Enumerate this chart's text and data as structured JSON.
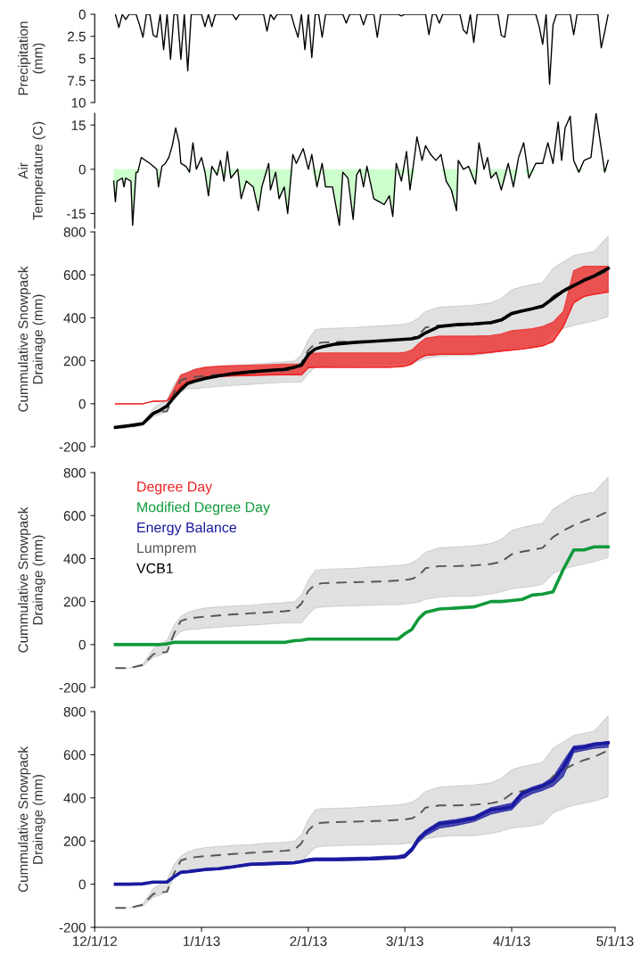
{
  "chart_data": [
    {
      "type": "line",
      "ylabel": "Precipitation\n(mm)",
      "xlim": [
        "2012-12-01",
        "2013-05-01"
      ],
      "ylim": [
        10,
        0
      ],
      "yticks": [
        0,
        2.5,
        5,
        7.5,
        10
      ],
      "tick_labels": "y",
      "x": [
        "2012-12-07",
        "2012-12-08",
        "2012-12-09",
        "2012-12-10",
        "2012-12-11",
        "2012-12-13",
        "2012-12-14",
        "2012-12-15",
        "2012-12-16",
        "2012-12-17",
        "2012-12-18",
        "2012-12-19",
        "2012-12-20",
        "2012-12-21",
        "2012-12-22",
        "2012-12-23",
        "2012-12-24",
        "2012-12-25",
        "2012-12-26",
        "2012-12-27",
        "2012-12-28",
        "2012-12-29",
        "2013-01-01",
        "2013-01-02",
        "2013-01-03",
        "2013-01-04",
        "2013-01-05",
        "2013-01-10",
        "2013-01-11",
        "2013-01-12",
        "2013-01-19",
        "2013-01-20",
        "2013-01-21",
        "2013-01-22",
        "2013-01-23",
        "2013-01-27",
        "2013-01-28",
        "2013-01-29",
        "2013-01-30",
        "2013-01-31",
        "2013-02-01",
        "2013-02-02",
        "2013-02-03",
        "2013-02-04",
        "2013-02-05",
        "2013-02-06",
        "2013-02-11",
        "2013-02-12",
        "2013-02-13",
        "2013-02-16",
        "2013-02-17",
        "2013-02-18",
        "2013-02-20",
        "2013-02-21",
        "2013-02-22",
        "2013-02-27",
        "2013-02-28",
        "2013-03-01",
        "2013-03-07",
        "2013-03-08",
        "2013-03-09",
        "2013-03-10",
        "2013-03-11",
        "2013-03-12",
        "2013-03-17",
        "2013-03-18",
        "2013-03-19",
        "2013-03-20",
        "2013-03-21",
        "2013-03-22",
        "2013-03-28",
        "2013-03-29",
        "2013-03-30",
        "2013-03-31",
        "2013-04-08",
        "2013-04-09",
        "2013-04-10",
        "2013-04-11",
        "2013-04-12",
        "2013-04-13",
        "2013-04-14",
        "2013-04-18",
        "2013-04-19",
        "2013-04-20",
        "2013-04-26",
        "2013-04-27",
        "2013-04-28",
        "2013-04-29"
      ],
      "series": [
        {
          "color": "#000000",
          "values": [
            0,
            1.5,
            0,
            0.6,
            0,
            0,
            1.2,
            2.6,
            0,
            0,
            2.4,
            2.6,
            0,
            4.0,
            0,
            5.1,
            0,
            0,
            5.1,
            0,
            6.4,
            0,
            0,
            1.4,
            0,
            1.4,
            0,
            0,
            0.6,
            0,
            0,
            1.9,
            0,
            0.6,
            0,
            0,
            1.4,
            2.6,
            0,
            4.0,
            0,
            4.9,
            0,
            0,
            2.6,
            0,
            0,
            1.0,
            0,
            0,
            1.2,
            0,
            0,
            2.6,
            0,
            0,
            0.2,
            0,
            0,
            2.3,
            0,
            0,
            1.0,
            0,
            0,
            1.8,
            2.2,
            0,
            3.2,
            0,
            0,
            2.4,
            2.6,
            0,
            0,
            1.4,
            3.4,
            0,
            7.9,
            1.2,
            0,
            0,
            2.3,
            0,
            0,
            3.8,
            2.0,
            0
          ]
        }
      ]
    },
    {
      "type": "line",
      "ylabel": "Air\nTemperature (C)",
      "xlim": [
        "2012-12-01",
        "2013-05-01"
      ],
      "ylim": [
        -20,
        19
      ],
      "yticks": [
        -15,
        0,
        15
      ],
      "tick_labels": "y",
      "x": [
        "2012-12-06T12:00",
        "2012-12-07T00:00",
        "2012-12-07T12:00",
        "2012-12-09T00:00",
        "2012-12-09T12:00",
        "2012-12-10T00:00",
        "2012-12-11T12:00",
        "2012-12-12T00:00",
        "2012-12-13T00:00",
        "2012-12-13T12:00",
        "2012-12-14T12:00",
        "2012-12-17T00:00",
        "2012-12-19T00:00",
        "2012-12-19T12:00",
        "2012-12-20T12:00",
        "2012-12-21T12:00",
        "2012-12-22T12:00",
        "2012-12-23T12:00",
        "2012-12-24T12:00",
        "2012-12-25T12:00",
        "2012-12-26T00:00",
        "2012-12-27T12:00",
        "2012-12-28T12:00",
        "2012-12-29T12:00",
        "2012-12-30T12:00",
        "2013-01-01T00:00",
        "2013-01-02T00:00",
        "2013-01-03T00:00",
        "2013-01-04T00:00",
        "2013-01-05T12:00",
        "2013-01-06T12:00",
        "2013-01-07T12:00",
        "2013-01-08T12:00",
        "2013-01-09T12:00",
        "2013-01-11T12:00",
        "2013-01-12T12:00",
        "2013-01-14T00:00",
        "2013-01-16T00:00",
        "2013-01-17T12:00",
        "2013-01-18T12:00",
        "2013-01-20T12:00",
        "2013-01-21T00:00",
        "2013-01-22T12:00",
        "2013-01-23T12:00",
        "2013-01-25T00:00",
        "2013-01-26T00:00",
        "2013-01-27T12:00",
        "2013-01-28T12:00",
        "2013-01-30T12:00",
        "2013-02-01T00:00",
        "2013-02-02T00:00",
        "2013-02-03T12:00",
        "2013-02-05T00:00",
        "2013-02-06T00:00",
        "2013-02-08T00:00",
        "2013-02-10T00:00",
        "2013-02-11T00:00",
        "2013-02-12T12:00",
        "2013-02-14T00:00",
        "2013-02-15T00:00",
        "2013-02-16T00:00",
        "2013-02-17T00:00",
        "2013-02-18T00:00",
        "2013-02-20T00:00",
        "2013-02-21T12:00",
        "2013-02-23T00:00",
        "2013-02-24T12:00",
        "2013-02-25T12:00",
        "2013-02-26T12:00",
        "2013-02-28T00:00",
        "2013-03-01T12:00",
        "2013-03-02T12:00",
        "2013-03-04T00:00",
        "2013-03-04T12:00",
        "2013-03-06T00:00",
        "2013-03-07T00:00",
        "2013-03-08T12:00",
        "2013-03-10T00:00",
        "2013-03-11T12:00",
        "2013-03-13T00:00",
        "2013-03-14T12:00",
        "2013-03-16T00:00",
        "2013-03-16T12:00",
        "2013-03-18T00:00",
        "2013-03-19T12:00",
        "2013-03-21T12:00",
        "2013-03-22T12:00",
        "2013-03-24T00:00",
        "2013-03-25T00:00",
        "2013-03-26T00:00",
        "2013-03-27T12:00",
        "2013-03-29T00:00",
        "2013-03-31T00:00",
        "2013-04-01T12:00",
        "2013-04-03T00:00",
        "2013-04-04T12:00",
        "2013-04-06T00:00",
        "2013-04-08T00:00",
        "2013-04-10T00:00",
        "2013-04-11T12:00",
        "2013-04-13T00:00",
        "2013-04-14T12:00",
        "2013-04-15T12:00",
        "2013-04-16T12:00",
        "2013-04-18T00:00",
        "2013-04-19T00:00",
        "2013-04-20T12:00",
        "2013-04-22T00:00",
        "2013-04-24T00:00",
        "2013-04-25T12:00",
        "2013-04-26T12:00",
        "2013-04-28T00:00",
        "2013-04-29T00:00"
      ],
      "series": [
        {
          "type": "area",
          "color": "#ccffcc",
          "values": [
            -4,
            -11,
            -4,
            -3,
            -6,
            -3,
            -4,
            -19,
            -1,
            -1,
            0,
            0,
            0,
            -6,
            0,
            0,
            0,
            0,
            0,
            0,
            0,
            0,
            -1,
            0,
            0,
            0,
            -1,
            -9,
            0,
            -2,
            0,
            -4,
            0,
            -3,
            0,
            -10,
            -4,
            -6,
            -14,
            -6,
            0,
            -7,
            -1,
            -10,
            -6,
            -15,
            0,
            0,
            0,
            0,
            0,
            -6,
            0,
            -6,
            -6,
            -19,
            -1,
            -3,
            -17,
            -2,
            0,
            -6,
            0,
            -10,
            -11,
            -12,
            -9,
            -16,
            0,
            -4,
            0,
            -7,
            0,
            0,
            0,
            0,
            0,
            0,
            0,
            -4,
            -7,
            -14,
            0,
            0,
            0,
            -5,
            0,
            0,
            0,
            -3,
            -1,
            -7,
            0,
            -6,
            0,
            0,
            -3,
            0,
            0,
            0,
            0,
            0,
            0,
            0,
            0,
            0,
            -1,
            0,
            0,
            0,
            0,
            -1,
            0
          ]
        },
        {
          "type": "line",
          "color": "#000000",
          "values": [
            -4,
            -11,
            -4,
            -3,
            -6,
            -3,
            -4,
            -19,
            -1,
            -1,
            4,
            2,
            0,
            -6,
            1,
            2,
            4,
            8,
            14,
            9,
            2,
            1,
            -1,
            9,
            0,
            4,
            -1,
            -9,
            1,
            -2,
            3,
            -4,
            6,
            -3,
            0,
            -10,
            -4,
            -6,
            -14,
            -6,
            2,
            -7,
            -1,
            -10,
            -6,
            -15,
            5,
            2,
            7,
            0,
            5,
            -6,
            2,
            -6,
            -6,
            -19,
            -1,
            -3,
            -17,
            -2,
            0,
            -6,
            1,
            -10,
            -11,
            -12,
            -9,
            -16,
            2,
            -4,
            6,
            -7,
            6,
            11,
            3,
            8,
            5,
            3,
            5,
            -4,
            -7,
            -14,
            3,
            0,
            1,
            -5,
            9,
            0,
            4,
            -3,
            -1,
            -7,
            2,
            -6,
            4,
            9,
            -3,
            2,
            2,
            9,
            2,
            16,
            3,
            14,
            18,
            3,
            -1,
            3,
            4,
            19,
            11,
            -1,
            3
          ]
        }
      ]
    },
    {
      "type": "line",
      "ylabel": "Cummulative Snowpack\nDrainage (mm)",
      "xlim": [
        "2012-12-01",
        "2013-05-01"
      ],
      "ylim": [
        -200,
        800
      ],
      "yticks": [
        -200,
        0,
        200,
        400,
        600,
        800
      ],
      "tick_labels": "y",
      "x": [
        "2012-12-07",
        "2012-12-11",
        "2012-12-15",
        "2012-12-18",
        "2012-12-20",
        "2012-12-22",
        "2012-12-24",
        "2012-12-26",
        "2012-12-28",
        "2012-12-30",
        "2013-01-02",
        "2013-01-06",
        "2013-01-10",
        "2013-01-15",
        "2013-01-20",
        "2013-01-25",
        "2013-01-28",
        "2013-01-30",
        "2013-02-01",
        "2013-02-03",
        "2013-02-05",
        "2013-02-09",
        "2013-02-14",
        "2013-02-19",
        "2013-02-24",
        "2013-02-27",
        "2013-03-01",
        "2013-03-03",
        "2013-03-05",
        "2013-03-07",
        "2013-03-11",
        "2013-03-16",
        "2013-03-21",
        "2013-03-26",
        "2013-03-29",
        "2013-04-01",
        "2013-04-04",
        "2013-04-07",
        "2013-04-10",
        "2013-04-13",
        "2013-04-16",
        "2013-04-19",
        "2013-04-22",
        "2013-04-25",
        "2013-04-29"
      ],
      "series": [
        {
          "name": "Degree Day",
          "color": "#ee2222",
          "values": [
            0,
            0,
            0,
            12,
            12,
            14,
            40,
            80,
            100,
            110,
            120,
            128,
            130,
            132,
            134,
            135,
            135,
            135,
            168,
            170,
            170,
            170,
            170,
            170,
            170,
            172,
            175,
            185,
            210,
            225,
            230,
            230,
            232,
            240,
            245,
            250,
            255,
            262,
            270,
            290,
            360,
            470,
            500,
            510,
            520
          ],
          "lower": [
            0,
            0,
            0,
            12,
            12,
            14,
            40,
            80,
            100,
            110,
            120,
            128,
            130,
            132,
            134,
            135,
            135,
            135,
            168,
            170,
            170,
            170,
            170,
            170,
            170,
            172,
            175,
            185,
            210,
            225,
            230,
            230,
            232,
            240,
            245,
            250,
            255,
            262,
            270,
            290,
            360,
            470,
            500,
            510,
            520
          ],
          "upper": [
            0,
            0,
            0,
            12,
            12,
            14,
            70,
            135,
            145,
            160,
            170,
            175,
            178,
            180,
            182,
            185,
            185,
            185,
            235,
            236,
            237,
            237,
            237,
            237,
            237,
            237,
            240,
            250,
            280,
            305,
            315,
            315,
            315,
            318,
            325,
            340,
            345,
            350,
            360,
            380,
            430,
            620,
            640,
            640,
            640
          ]
        },
        {
          "color": "#555555",
          "line_style": "dashed",
          "values": [
            -110,
            -110,
            -95,
            -45,
            -38,
            -35,
            50,
            110,
            120,
            125,
            130,
            135,
            140,
            145,
            150,
            155,
            160,
            190,
            250,
            280,
            285,
            288,
            290,
            292,
            295,
            298,
            300,
            305,
            320,
            355,
            365,
            365,
            368,
            375,
            385,
            420,
            432,
            440,
            450,
            500,
            530,
            555,
            575,
            590,
            620
          ],
          "lower": [
            -110,
            -110,
            -100,
            -60,
            -50,
            -30,
            30,
            60,
            70,
            70,
            75,
            80,
            85,
            90,
            95,
            100,
            100,
            100,
            140,
            170,
            175,
            178,
            180,
            182,
            185,
            185,
            188,
            192,
            198,
            210,
            220,
            225,
            225,
            235,
            245,
            260,
            265,
            270,
            280,
            330,
            350,
            365,
            375,
            385,
            405
          ],
          "upper": [
            -110,
            -110,
            -90,
            -20,
            0,
            20,
            90,
            130,
            150,
            160,
            170,
            175,
            180,
            183,
            190,
            195,
            200,
            230,
            300,
            345,
            350,
            352,
            355,
            360,
            365,
            368,
            372,
            380,
            400,
            430,
            450,
            455,
            460,
            470,
            490,
            530,
            545,
            555,
            565,
            630,
            660,
            690,
            700,
            710,
            780
          ]
        },
        {
          "name": "VCB1",
          "color": "#000000",
          "values": [
            -110,
            -102,
            -92,
            -45,
            -30,
            -10,
            30,
            65,
            95,
            105,
            118,
            130,
            140,
            148,
            155,
            160,
            170,
            180,
            230,
            255,
            265,
            278,
            285,
            290,
            295,
            298,
            300,
            302,
            310,
            330,
            360,
            368,
            372,
            378,
            390,
            420,
            432,
            442,
            455,
            490,
            525,
            550,
            575,
            595,
            630
          ]
        }
      ]
    },
    {
      "type": "line",
      "ylabel": "Cummulative Snowpack\nDrainage (mm)",
      "xlim": [
        "2012-12-01",
        "2013-05-01"
      ],
      "ylim": [
        -200,
        800
      ],
      "yticks": [
        -200,
        0,
        200,
        400,
        600,
        800
      ],
      "tick_labels": "y",
      "legend": "top left",
      "x": [
        "2012-12-07",
        "2012-12-11",
        "2012-12-15",
        "2012-12-18",
        "2012-12-20",
        "2012-12-22",
        "2012-12-24",
        "2012-12-26",
        "2012-12-28",
        "2012-12-30",
        "2013-01-02",
        "2013-01-06",
        "2013-01-10",
        "2013-01-15",
        "2013-01-20",
        "2013-01-25",
        "2013-01-28",
        "2013-01-30",
        "2013-02-01",
        "2013-02-03",
        "2013-02-05",
        "2013-02-09",
        "2013-02-14",
        "2013-02-19",
        "2013-02-24",
        "2013-02-27",
        "2013-03-01",
        "2013-03-03",
        "2013-03-05",
        "2013-03-07",
        "2013-03-11",
        "2013-03-16",
        "2013-03-21",
        "2013-03-26",
        "2013-03-29",
        "2013-04-01",
        "2013-04-04",
        "2013-04-07",
        "2013-04-10",
        "2013-04-13",
        "2013-04-16",
        "2013-04-19",
        "2013-04-22",
        "2013-04-25",
        "2013-04-29"
      ],
      "series": [
        {
          "name": "Modified Degree Day",
          "color": "#109a3a",
          "values": [
            0,
            0,
            0,
            0,
            0,
            3,
            10,
            10,
            10,
            10,
            10,
            10,
            10,
            10,
            10,
            10,
            18,
            20,
            25,
            25,
            25,
            25,
            25,
            25,
            25,
            25,
            50,
            70,
            120,
            150,
            165,
            170,
            175,
            200,
            200,
            205,
            210,
            230,
            235,
            245,
            350,
            440,
            440,
            455,
            455
          ]
        },
        {
          "name": "Lumprem",
          "color": "#555555",
          "line_style": "dashed",
          "values": [
            -110,
            -110,
            -95,
            -45,
            -38,
            -35,
            50,
            110,
            120,
            125,
            130,
            135,
            140,
            145,
            150,
            155,
            160,
            190,
            250,
            280,
            285,
            288,
            290,
            292,
            295,
            298,
            300,
            305,
            320,
            355,
            365,
            365,
            368,
            375,
            385,
            420,
            432,
            440,
            450,
            500,
            530,
            555,
            575,
            590,
            620
          ],
          "lower": [
            -110,
            -110,
            -100,
            -60,
            -50,
            -30,
            30,
            60,
            70,
            70,
            75,
            80,
            85,
            90,
            95,
            100,
            100,
            100,
            140,
            170,
            175,
            178,
            180,
            182,
            185,
            185,
            188,
            192,
            198,
            210,
            220,
            225,
            225,
            235,
            245,
            260,
            265,
            270,
            280,
            330,
            350,
            365,
            375,
            385,
            405
          ],
          "upper": [
            -110,
            -110,
            -90,
            -20,
            0,
            20,
            90,
            130,
            150,
            160,
            170,
            175,
            180,
            183,
            190,
            195,
            200,
            230,
            300,
            345,
            350,
            352,
            355,
            360,
            365,
            368,
            372,
            380,
            400,
            430,
            450,
            455,
            460,
            470,
            490,
            530,
            545,
            555,
            565,
            630,
            660,
            690,
            700,
            710,
            780
          ]
        }
      ]
    },
    {
      "type": "line",
      "ylabel": "Cummulative Snowpack\nDrainage (mm)",
      "xlim": [
        "2012-12-01",
        "2013-05-01"
      ],
      "ylim": [
        -200,
        800
      ],
      "yticks": [
        -200,
        0,
        200,
        400,
        600,
        800
      ],
      "xticks": [
        {
          "value": "2012-12-01",
          "label": "12/1/12"
        },
        {
          "value": "2013-01-01",
          "label": "1/1/13"
        },
        {
          "value": "2013-02-01",
          "label": "2/1/13"
        },
        {
          "value": "2013-03-01",
          "label": "3/1/13"
        },
        {
          "value": "2013-04-01",
          "label": "4/1/13"
        },
        {
          "value": "2013-05-01",
          "label": "5/1/13"
        }
      ],
      "x": [
        "2012-12-07",
        "2012-12-11",
        "2012-12-15",
        "2012-12-18",
        "2012-12-20",
        "2012-12-22",
        "2012-12-24",
        "2012-12-26",
        "2012-12-28",
        "2012-12-30",
        "2013-01-02",
        "2013-01-06",
        "2013-01-10",
        "2013-01-15",
        "2013-01-20",
        "2013-01-25",
        "2013-01-28",
        "2013-01-30",
        "2013-02-01",
        "2013-02-03",
        "2013-02-05",
        "2013-02-09",
        "2013-02-14",
        "2013-02-19",
        "2013-02-24",
        "2013-02-27",
        "2013-03-01",
        "2013-03-03",
        "2013-03-05",
        "2013-03-07",
        "2013-03-11",
        "2013-03-16",
        "2013-03-21",
        "2013-03-26",
        "2013-03-29",
        "2013-04-01",
        "2013-04-04",
        "2013-04-07",
        "2013-04-10",
        "2013-04-13",
        "2013-04-16",
        "2013-04-19",
        "2013-04-22",
        "2013-04-25",
        "2013-04-29"
      ],
      "series": [
        {
          "name": "Energy Balance",
          "color": "#1a1aa0",
          "values": [
            0,
            0,
            2,
            10,
            10,
            10,
            35,
            55,
            58,
            62,
            68,
            72,
            80,
            92,
            95,
            98,
            100,
            105,
            112,
            115,
            115,
            115,
            116,
            118,
            122,
            125,
            130,
            160,
            210,
            240,
            280,
            290,
            305,
            345,
            350,
            360,
            420,
            440,
            455,
            480,
            540,
            630,
            635,
            648,
            655
          ],
          "lower": [
            0,
            0,
            0,
            8,
            8,
            8,
            30,
            50,
            55,
            58,
            64,
            68,
            76,
            88,
            90,
            92,
            95,
            100,
            105,
            108,
            108,
            108,
            110,
            112,
            115,
            118,
            122,
            150,
            195,
            225,
            260,
            272,
            290,
            325,
            335,
            345,
            395,
            420,
            435,
            455,
            500,
            610,
            620,
            630,
            635
          ],
          "upper": [
            0,
            0,
            4,
            12,
            12,
            12,
            40,
            60,
            62,
            66,
            72,
            76,
            84,
            96,
            100,
            103,
            105,
            110,
            118,
            122,
            122,
            122,
            124,
            126,
            130,
            132,
            140,
            170,
            220,
            250,
            290,
            300,
            315,
            355,
            365,
            375,
            430,
            450,
            465,
            495,
            570,
            640,
            645,
            655,
            660
          ]
        },
        {
          "color": "#555555",
          "line_style": "dashed",
          "values": [
            -110,
            -110,
            -95,
            -45,
            -38,
            -35,
            50,
            110,
            120,
            125,
            130,
            135,
            140,
            145,
            150,
            155,
            160,
            190,
            250,
            280,
            285,
            288,
            290,
            292,
            295,
            298,
            300,
            305,
            320,
            355,
            365,
            365,
            368,
            375,
            385,
            420,
            432,
            440,
            450,
            500,
            530,
            555,
            575,
            590,
            620
          ],
          "lower": [
            -110,
            -110,
            -100,
            -60,
            -50,
            -30,
            30,
            60,
            70,
            70,
            75,
            80,
            85,
            90,
            95,
            100,
            100,
            100,
            140,
            170,
            175,
            178,
            180,
            182,
            185,
            185,
            188,
            192,
            198,
            210,
            220,
            225,
            225,
            235,
            245,
            260,
            265,
            270,
            280,
            330,
            350,
            365,
            375,
            385,
            405
          ],
          "upper": [
            -110,
            -110,
            -90,
            -20,
            0,
            20,
            90,
            130,
            150,
            160,
            170,
            175,
            180,
            183,
            190,
            195,
            200,
            230,
            300,
            345,
            350,
            352,
            355,
            360,
            365,
            368,
            372,
            380,
            400,
            430,
            450,
            455,
            460,
            470,
            490,
            530,
            545,
            555,
            565,
            630,
            660,
            690,
            700,
            710,
            780
          ]
        }
      ]
    }
  ]
}
